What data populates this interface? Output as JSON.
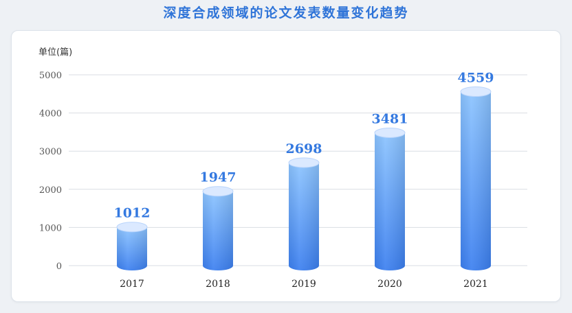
{
  "title": "深度合成领域的论文发表数量变化趋势",
  "chart_data": {
    "type": "bar",
    "title": "深度合成领域的论文发表数量变化趋势",
    "ylabel": "单位(篇)",
    "xlabel": "",
    "categories": [
      "2017",
      "2018",
      "2019",
      "2020",
      "2021"
    ],
    "values": [
      1012,
      1947,
      2698,
      3481,
      4559
    ],
    "ylim": [
      0,
      5000
    ],
    "yticks": [
      0,
      1000,
      2000,
      3000,
      4000,
      5000
    ],
    "grid": true,
    "bar_style": "cylinder",
    "colors": {
      "bar_top": "#8cc4ff",
      "bar_bottom": "#3b7ff0",
      "cap": "#dbe9ff",
      "label": "#3479e0",
      "title": "#2f74d8"
    }
  }
}
